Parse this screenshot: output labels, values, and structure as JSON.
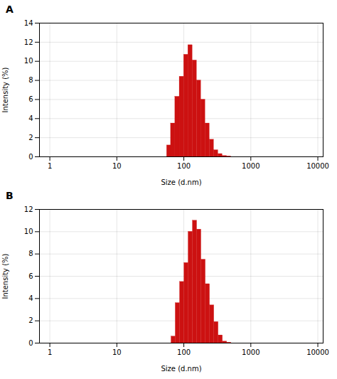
{
  "chart_data": [
    {
      "type": "bar",
      "title": "A",
      "xlabel": "Size (d.nm)",
      "ylabel": "Intensity (%)",
      "x": [
        60,
        69,
        80,
        93,
        108,
        125,
        145,
        168,
        194,
        225,
        261,
        302,
        350,
        405,
        470
      ],
      "values": [
        1.2,
        3.5,
        6.3,
        8.4,
        10.7,
        11.7,
        10.1,
        8.0,
        6.0,
        3.5,
        1.8,
        0.7,
        0.3,
        0.1,
        0.05
      ],
      "color": "#cc1111",
      "log": "x",
      "grid": true,
      "xlim": [
        0.7,
        12000
      ],
      "xticks": [
        1,
        10,
        100,
        1000,
        10000
      ],
      "ylim": [
        0,
        14
      ],
      "yticks": [
        0,
        2,
        4,
        6,
        8,
        10,
        12,
        14
      ]
    },
    {
      "type": "bar",
      "title": "B",
      "xlabel": "Size (d.nm)",
      "ylabel": "Intensity (%)",
      "x": [
        70,
        81,
        94,
        109,
        126,
        146,
        169,
        196,
        227,
        263,
        305,
        353,
        409,
        474
      ],
      "values": [
        0.6,
        3.6,
        5.5,
        7.2,
        10.0,
        11.0,
        10.2,
        7.5,
        5.3,
        3.4,
        1.9,
        0.7,
        0.15,
        0.05
      ],
      "color": "#cc1111",
      "log": "x",
      "grid": true,
      "xlim": [
        0.7,
        12000
      ],
      "xticks": [
        1,
        10,
        100,
        1000,
        10000
      ],
      "ylim": [
        0,
        12
      ],
      "yticks": [
        0,
        2,
        4,
        6,
        8,
        10,
        12
      ]
    }
  ]
}
